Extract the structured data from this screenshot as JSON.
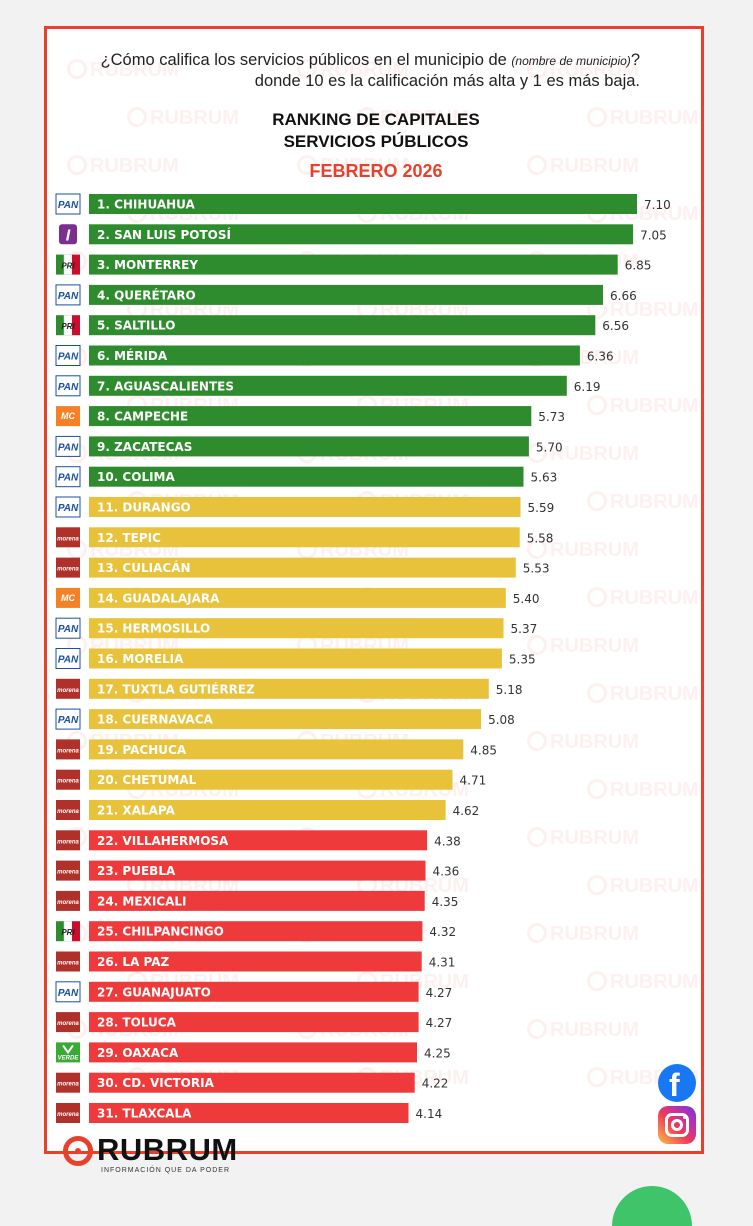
{
  "question": {
    "part1": "¿Cómo califica los servicios públicos en el municipio de",
    "italic": "(nombre de municipio)",
    "part2": "? donde 10 es la calificación más alta y 1 es más baja."
  },
  "watermark": "RUBRUM",
  "brand": {
    "name": "RUBRUM",
    "tagline": "INFORMACIÓN QUE DA PODER"
  },
  "social": {
    "facebook": "f"
  },
  "colors": {
    "green": "#2e8b2e",
    "yellow": "#e8c23a",
    "red": "#ee3a3a",
    "accent": "#e8402c"
  },
  "parties": {
    "PAN": {
      "text": "PAN",
      "color": "#1b4fa0"
    },
    "IND": {
      "text": "I",
      "color": "#7a2f8f"
    },
    "PRI": {
      "text": "PRI",
      "color": "#c8102e"
    },
    "MC": {
      "text": "MC",
      "color": "#f58025"
    },
    "MORENA": {
      "text": "morena",
      "color": "#b0302a"
    },
    "VERDE": {
      "text": "VERDE",
      "color": "#3aa935"
    }
  },
  "chart_data": {
    "type": "bar",
    "orientation": "horizontal",
    "title": "RANKING DE CAPITALES",
    "subtitle": "SERVICIOS PÚBLICOS",
    "period": "FEBRERO 2026",
    "xlim": [
      0,
      7.1
    ],
    "categories": [
      "1. CHIHUAHUA",
      "2. SAN LUIS POTOSÍ",
      "3. MONTERREY",
      "4. QUERÉTARO",
      "5. SALTILLO",
      "6. MÉRIDA",
      "7. AGUASCALIENTES",
      "8. CAMPECHE",
      "9. ZACATECAS",
      "10. COLIMA",
      "11. DURANGO",
      "12. TEPIC",
      "13. CULIACÁN",
      "14. GUADALAJARA",
      "15. HERMOSILLO",
      "16. MORELIA",
      "17. TUXTLA GUTIÉRREZ",
      "18. CUERNAVACA",
      "19. PACHUCA",
      "20. CHETUMAL",
      "21. XALAPA",
      "22. VILLAHERMOSA",
      "23. PUEBLA",
      "24. MEXICALI",
      "25. CHILPANCINGO",
      "26. LA PAZ",
      "27. GUANAJUATO",
      "28. TOLUCA",
      "29. OAXACA",
      "30. CD. VICTORIA",
      "31. TLAXCALA"
    ],
    "values": [
      7.1,
      7.05,
      6.85,
      6.66,
      6.56,
      6.36,
      6.19,
      5.73,
      5.7,
      5.63,
      5.59,
      5.58,
      5.53,
      5.4,
      5.37,
      5.35,
      5.18,
      5.08,
      4.85,
      4.71,
      4.62,
      4.38,
      4.36,
      4.35,
      4.32,
      4.31,
      4.27,
      4.27,
      4.25,
      4.22,
      4.14
    ],
    "value_labels": [
      "7.10",
      "7.05",
      "6.85",
      "6.66",
      "6.56",
      "6.36",
      "6.19",
      "5.73",
      "5.70",
      "5.63",
      "5.59",
      "5.58",
      "5.53",
      "5.40",
      "5.37",
      "5.35",
      "5.18",
      "5.08",
      "4.85",
      "4.71",
      "4.62",
      "4.38",
      "4.36",
      "4.35",
      "4.32",
      "4.31",
      "4.27",
      "4.27",
      "4.25",
      "4.22",
      "4.14"
    ],
    "bar_colors": [
      "green",
      "green",
      "green",
      "green",
      "green",
      "green",
      "green",
      "green",
      "green",
      "green",
      "yellow",
      "yellow",
      "yellow",
      "yellow",
      "yellow",
      "yellow",
      "yellow",
      "yellow",
      "yellow",
      "yellow",
      "yellow",
      "red",
      "red",
      "red",
      "red",
      "red",
      "red",
      "red",
      "red",
      "red",
      "red"
    ],
    "party": [
      "PAN",
      "IND",
      "PRI",
      "PAN",
      "PRI",
      "PAN",
      "PAN",
      "MC",
      "PAN",
      "PAN",
      "PAN",
      "MORENA",
      "MORENA",
      "MC",
      "PAN",
      "PAN",
      "MORENA",
      "PAN",
      "MORENA",
      "MORENA",
      "MORENA",
      "MORENA",
      "MORENA",
      "MORENA",
      "PRI",
      "MORENA",
      "PAN",
      "MORENA",
      "VERDE",
      "MORENA",
      "MORENA"
    ]
  }
}
